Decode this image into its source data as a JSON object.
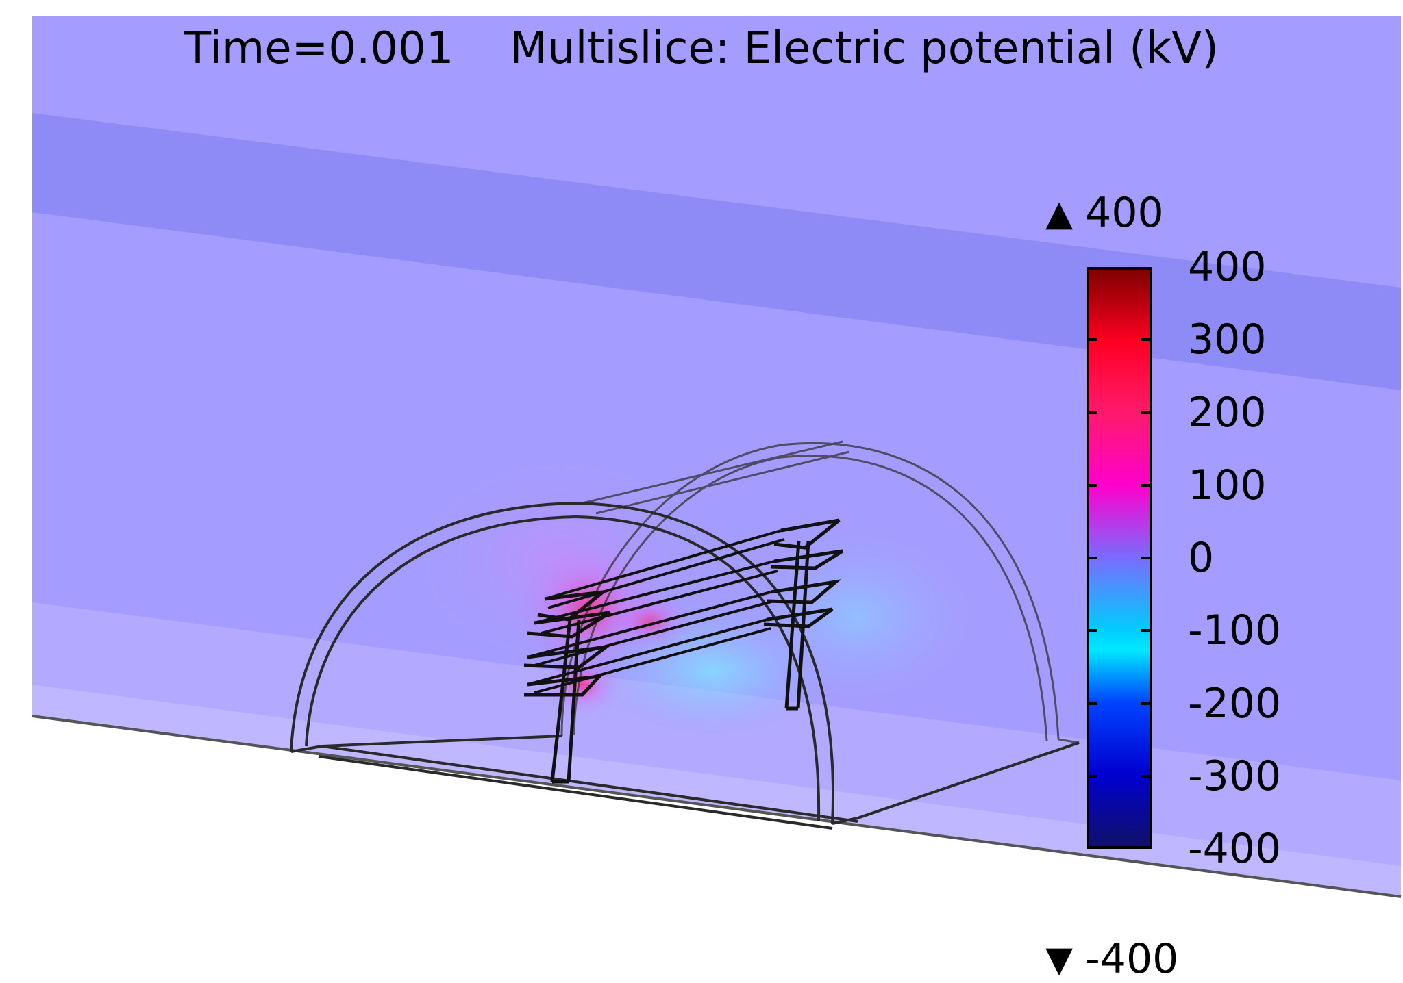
{
  "title": {
    "time": "Time=0.001",
    "label": "Multislice: Electric potential (kV)"
  },
  "range": {
    "max_label": "400",
    "min_label": "-400",
    "max_icon": "up-triangle-icon",
    "min_icon": "down-triangle-icon"
  },
  "colorbar": {
    "ticks": [
      "400",
      "300",
      "200",
      "100",
      "0",
      "-100",
      "-200",
      "-300",
      "-400"
    ],
    "min": -400,
    "max": 400,
    "colormap": [
      "#7f0000",
      "#ff0022",
      "#ff1a6e",
      "#ff00cc",
      "#7a6cff",
      "#00ccff",
      "#0044ff",
      "#0000d0",
      "#10106a"
    ]
  },
  "colors": {
    "slice_background": "#a79cff",
    "slice_band": "#8f8bf5",
    "outline": "#222222"
  }
}
